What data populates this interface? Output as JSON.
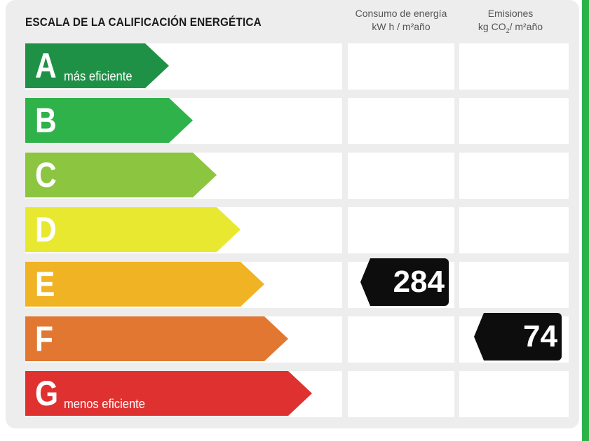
{
  "title": "ESCALA DE LA CALIFICACIÓN ENERGÉTICA",
  "columns": {
    "consumo": {
      "line1": "Consumo de energía",
      "line2": "kW h / m²año"
    },
    "emisiones": {
      "line1": "Emisiones",
      "line2_pre": "kg CO",
      "line2_sub": "2",
      "line2_post": "/ m²año"
    }
  },
  "classes": [
    {
      "letter": "A",
      "label": "más eficiente",
      "color": "#1f9146"
    },
    {
      "letter": "B",
      "label": "",
      "color": "#2fb24a"
    },
    {
      "letter": "C",
      "label": "",
      "color": "#8cc540"
    },
    {
      "letter": "D",
      "label": "",
      "color": "#e8e830"
    },
    {
      "letter": "E",
      "label": "",
      "color": "#f0b323"
    },
    {
      "letter": "F",
      "label": "",
      "color": "#e27732"
    },
    {
      "letter": "G",
      "label": "menos eficiente",
      "color": "#e03131"
    }
  ],
  "rating": {
    "consumo": {
      "value": "284",
      "class": "E"
    },
    "emisiones": {
      "value": "74",
      "class": "F"
    }
  }
}
